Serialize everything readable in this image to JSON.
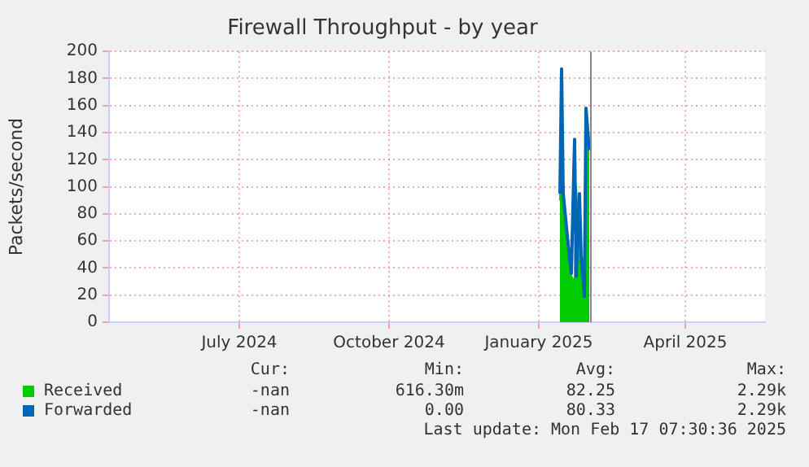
{
  "chart_data": {
    "type": "area",
    "title": "Firewall Throughput - by year",
    "ylabel": "Packets/second",
    "x": [
      "2025-01-14",
      "2025-01-15",
      "2025-01-16",
      "2025-01-18",
      "2025-01-20",
      "2025-01-21",
      "2025-01-23",
      "2025-01-24",
      "2025-01-26",
      "2025-01-27",
      "2025-01-29",
      "2025-01-30",
      "2025-02-01"
    ],
    "series": [
      {
        "name": "Received",
        "color": "#00cc00",
        "values": [
          90,
          187,
          91,
          53,
          40,
          34,
          30,
          100,
          60,
          26,
          28,
          127,
          127
        ]
      },
      {
        "name": "Forwarded",
        "type": "line",
        "color": "#0066b3",
        "values": [
          95,
          187,
          95,
          70,
          46,
          36,
          135,
          34,
          95,
          49,
          19,
          158,
          127
        ]
      }
    ],
    "xlim": [
      "2024-04-12",
      "2025-05-20"
    ],
    "xticks": [
      {
        "value": "2024-07-01",
        "label": "July 2024"
      },
      {
        "value": "2024-10-01",
        "label": "October 2024"
      },
      {
        "value": "2025-01-01",
        "label": "January 2025"
      },
      {
        "value": "2025-04-01",
        "label": "April 2025"
      }
    ],
    "ylim": [
      0,
      200
    ],
    "yticks": [
      0,
      20,
      40,
      60,
      80,
      100,
      120,
      140,
      160,
      180,
      200
    ],
    "ref_lines": [
      {
        "axis": "x",
        "value": "2025-02-02",
        "color": "#888888"
      }
    ],
    "grid": true,
    "legend": "bottom",
    "annotations": [
      "Cur:",
      "Min:",
      "Avg:",
      "Max:",
      "-nan",
      "616.30m",
      "82.25",
      "2.29k",
      "-nan",
      "0.00",
      "80.33",
      "2.29k",
      "Last update: Mon Feb 17 07:30:36 2025"
    ]
  }
}
